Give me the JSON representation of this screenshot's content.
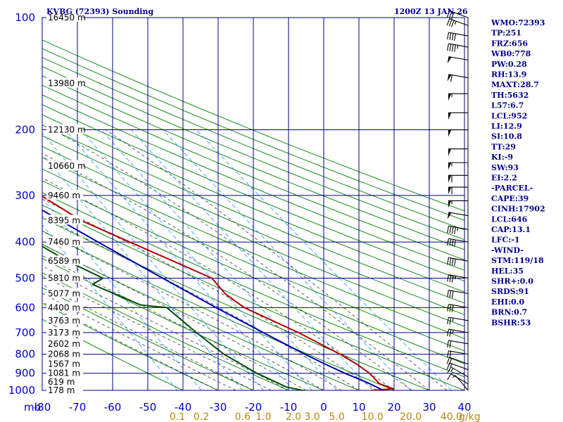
{
  "header": {
    "title": "KVBG (72393) Sounding",
    "time": "1200Z 13 JAN 26"
  },
  "colors": {
    "grid": "#00008b",
    "dry_adiabat": "#008000",
    "moist_adiabat": "#333333",
    "mixing_ratio": "#1e90ff",
    "temperature": "#b30000",
    "dewpoint": "#004d00",
    "parcel": "#0000b3",
    "axis_text": "#0000cd",
    "mixing_text": "#b8860b"
  },
  "chart_data": {
    "type": "skew-t",
    "xlabel": "",
    "ylabel": "mb",
    "pressure_levels": [
      100,
      200,
      300,
      400,
      500,
      600,
      700,
      800,
      900,
      1000
    ],
    "pressure_labels": [
      "100",
      "200",
      "300",
      "400",
      "500",
      "600",
      "700",
      "800",
      "900",
      "1000"
    ],
    "y_unit": "mb",
    "height_levels": [
      {
        "p": 100,
        "label": "16450 m"
      },
      {
        "p": 150,
        "label": "13980 m"
      },
      {
        "p": 200,
        "label": "12130 m"
      },
      {
        "p": 250,
        "label": "10660 m"
      },
      {
        "p": 300,
        "label": "9460 m"
      },
      {
        "p": 350,
        "label": "8395 m"
      },
      {
        "p": 400,
        "label": "7460 m"
      },
      {
        "p": 450,
        "label": "6589 m"
      },
      {
        "p": 500,
        "label": "5810 m"
      },
      {
        "p": 550,
        "label": "5077 m"
      },
      {
        "p": 600,
        "label": "4400 m"
      },
      {
        "p": 650,
        "label": "3763 m"
      },
      {
        "p": 700,
        "label": "3173 m"
      },
      {
        "p": 750,
        "label": "2602 m"
      },
      {
        "p": 800,
        "label": "2068 m"
      },
      {
        "p": 850,
        "label": "1567 m"
      },
      {
        "p": 900,
        "label": "1081 m"
      },
      {
        "p": 950,
        "label": "619 m"
      },
      {
        "p": 1000,
        "label": "178 m"
      }
    ],
    "temperature_ticks": [
      -80,
      -70,
      -60,
      -50,
      -40,
      -30,
      -20,
      -10,
      0,
      10,
      20,
      30,
      40
    ],
    "temperature_tick_labels": [
      "-80",
      "-70",
      "-60",
      "-50",
      "-40",
      "-30",
      "-20",
      "-10",
      "0",
      "10",
      "20",
      "30",
      "40"
    ],
    "xlim": [
      -80,
      40
    ],
    "ylim": [
      1000,
      100
    ],
    "mixing_ratio_labels": [
      {
        "w": 0.1,
        "label": "0.1"
      },
      {
        "w": 0.2,
        "label": "0.2"
      },
      {
        "w": 0.6,
        "label": "0.6"
      },
      {
        "w": 1.0,
        "label": "1.0"
      },
      {
        "w": 2.0,
        "label": "2.0"
      },
      {
        "w": 3.0,
        "label": "3.0"
      },
      {
        "w": 5.0,
        "label": "5.0"
      },
      {
        "w": 10.0,
        "label": "10.0"
      },
      {
        "w": 20.0,
        "label": "20.0"
      },
      {
        "w": 40.0,
        "label": "40.0"
      }
    ],
    "mixing_unit": "g/kg",
    "series": [
      {
        "name": "",
        "kind": "temperature",
        "points": [
          {
            "p": 1010,
            "t": 10
          },
          {
            "p": 1000,
            "t": 14
          },
          {
            "p": 990,
            "t": 20
          },
          {
            "p": 960,
            "t": 17
          },
          {
            "p": 900,
            "t": 16
          },
          {
            "p": 850,
            "t": 14
          },
          {
            "p": 800,
            "t": 11
          },
          {
            "p": 700,
            "t": 3
          },
          {
            "p": 600,
            "t": -8
          },
          {
            "p": 550,
            "t": -11
          },
          {
            "p": 500,
            "t": -12
          },
          {
            "p": 450,
            "t": -20
          },
          {
            "p": 400,
            "t": -29
          },
          {
            "p": 350,
            "t": -39
          },
          {
            "p": 300,
            "t": -46
          },
          {
            "p": 280,
            "t": -48
          },
          {
            "p": 250,
            "t": -54
          },
          {
            "p": 240,
            "t": -52
          },
          {
            "p": 230,
            "t": -50
          },
          {
            "p": 200,
            "t": -54
          },
          {
            "p": 150,
            "t": -64
          },
          {
            "p": 110,
            "t": -72
          },
          {
            "p": 100,
            "t": -74
          }
        ]
      },
      {
        "name": "",
        "kind": "dewpoint",
        "points": [
          {
            "p": 1010,
            "t": 0
          },
          {
            "p": 1000,
            "t": -6
          },
          {
            "p": 980,
            "t": -10
          },
          {
            "p": 900,
            "t": -16
          },
          {
            "p": 800,
            "t": -22
          },
          {
            "p": 700,
            "t": -26
          },
          {
            "p": 600,
            "t": -30
          },
          {
            "p": 590,
            "t": -37
          },
          {
            "p": 520,
            "t": -47
          },
          {
            "p": 500,
            "t": -43
          },
          {
            "p": 450,
            "t": -50
          },
          {
            "p": 400,
            "t": -56
          },
          {
            "p": 350,
            "t": -63
          },
          {
            "p": 300,
            "t": -69
          },
          {
            "p": 280,
            "t": -72
          },
          {
            "p": 250,
            "t": -74
          },
          {
            "p": 200,
            "t": -86
          }
        ]
      },
      {
        "name": "",
        "kind": "parcel",
        "points": [
          {
            "p": 1010,
            "t": 17
          },
          {
            "p": 1000,
            "t": 17
          },
          {
            "p": 950,
            "t": 13.5
          },
          {
            "p": 900,
            "t": 9
          },
          {
            "p": 850,
            "t": 5
          },
          {
            "p": 800,
            "t": 1
          },
          {
            "p": 700,
            "t": -7
          },
          {
            "p": 600,
            "t": -16
          },
          {
            "p": 500,
            "t": -26
          },
          {
            "p": 400,
            "t": -38
          },
          {
            "p": 300,
            "t": -53
          },
          {
            "p": 250,
            "t": -62
          },
          {
            "p": 200,
            "t": -72
          },
          {
            "p": 195,
            "t": -74
          }
        ]
      }
    ],
    "wind_profile": [
      {
        "p": 1000,
        "dir": 320,
        "spd": 5
      },
      {
        "p": 960,
        "dir": 300,
        "spd": 10
      },
      {
        "p": 920,
        "dir": 300,
        "spd": 15
      },
      {
        "p": 880,
        "dir": 290,
        "spd": 15
      },
      {
        "p": 850,
        "dir": 290,
        "spd": 20
      },
      {
        "p": 800,
        "dir": 280,
        "spd": 20
      },
      {
        "p": 750,
        "dir": 280,
        "spd": 20
      },
      {
        "p": 700,
        "dir": 280,
        "spd": 25
      },
      {
        "p": 650,
        "dir": 280,
        "spd": 25
      },
      {
        "p": 600,
        "dir": 280,
        "spd": 30
      },
      {
        "p": 550,
        "dir": 280,
        "spd": 30
      },
      {
        "p": 500,
        "dir": 280,
        "spd": 35
      },
      {
        "p": 450,
        "dir": 280,
        "spd": 40
      },
      {
        "p": 400,
        "dir": 280,
        "spd": 40
      },
      {
        "p": 370,
        "dir": 280,
        "spd": 45
      },
      {
        "p": 340,
        "dir": 280,
        "spd": 50
      },
      {
        "p": 310,
        "dir": 270,
        "spd": 55
      },
      {
        "p": 285,
        "dir": 270,
        "spd": 60
      },
      {
        "p": 265,
        "dir": 270,
        "spd": 60
      },
      {
        "p": 245,
        "dir": 270,
        "spd": 55
      },
      {
        "p": 225,
        "dir": 270,
        "spd": 50
      },
      {
        "p": 200,
        "dir": 270,
        "spd": 50
      },
      {
        "p": 180,
        "dir": 270,
        "spd": 50
      },
      {
        "p": 160,
        "dir": 270,
        "spd": 55
      },
      {
        "p": 145,
        "dir": 280,
        "spd": 60
      },
      {
        "p": 130,
        "dir": 280,
        "spd": 50
      },
      {
        "p": 120,
        "dir": 280,
        "spd": 45
      },
      {
        "p": 112,
        "dir": 280,
        "spd": 40
      },
      {
        "p": 105,
        "dir": 290,
        "spd": 35
      },
      {
        "p": 100,
        "dir": 290,
        "spd": 30
      }
    ]
  },
  "indices": [
    {
      "label": "WMO:72393"
    },
    {
      "label": "TP:251"
    },
    {
      "label": "FRZ:656"
    },
    {
      "label": "WB0:778"
    },
    {
      "label": "PW:0.28"
    },
    {
      "label": "RH:13.9"
    },
    {
      "label": "MAXT:28.7"
    },
    {
      "label": "TH:5632"
    },
    {
      "label": "L57:6.7"
    },
    {
      "label": "LCL:952"
    },
    {
      "label": "LI:12.9"
    },
    {
      "label": "SI:10.8"
    },
    {
      "label": "TT:29"
    },
    {
      "label": "KI:-9"
    },
    {
      "label": "SW:93"
    },
    {
      "label": "EI:2.2"
    },
    {
      "label": "-PARCEL-"
    },
    {
      "label": "CAPE:39"
    },
    {
      "label": "CINH:17902"
    },
    {
      "label": "LCL:646"
    },
    {
      "label": "CAP:13.1"
    },
    {
      "label": "LFC:-1"
    },
    {
      "label": "-WIND-"
    },
    {
      "label": "STM:119/18"
    },
    {
      "label": "HEL:35"
    },
    {
      "label": "SHR+:0.0"
    },
    {
      "label": "SRDS:91"
    },
    {
      "label": "EHI:0.0"
    },
    {
      "label": "BRN:0.7"
    },
    {
      "label": "BSHR:53"
    }
  ]
}
